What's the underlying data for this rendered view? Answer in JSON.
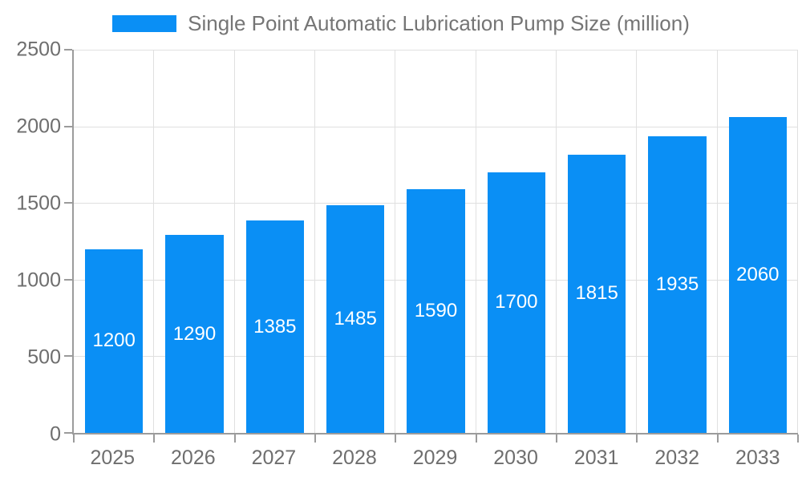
{
  "legend": {
    "label": "Single Point Automatic Lubrication Pump Size (million)"
  },
  "chart_data": {
    "type": "bar",
    "title": "Single Point Automatic Lubrication Pump Size (million)",
    "categories": [
      "2025",
      "2026",
      "2027",
      "2028",
      "2029",
      "2030",
      "2031",
      "2032",
      "2033"
    ],
    "values": [
      1200,
      1290,
      1385,
      1485,
      1590,
      1700,
      1815,
      1935,
      2060
    ],
    "xlabel": "",
    "ylabel": "",
    "ylim": [
      0,
      2500
    ],
    "yticks": [
      0,
      500,
      1000,
      1500,
      2000,
      2500
    ],
    "grid": true,
    "legend_position": "top",
    "value_labels": "inside-center"
  },
  "colors": {
    "bar": "#0a8ff5",
    "grid": "#e0e0e0",
    "axis": "#9b9b9b",
    "tick_text": "#6e6e6e",
    "legend_text": "#757575",
    "value_label": "#ffffff",
    "background": "#ffffff"
  }
}
